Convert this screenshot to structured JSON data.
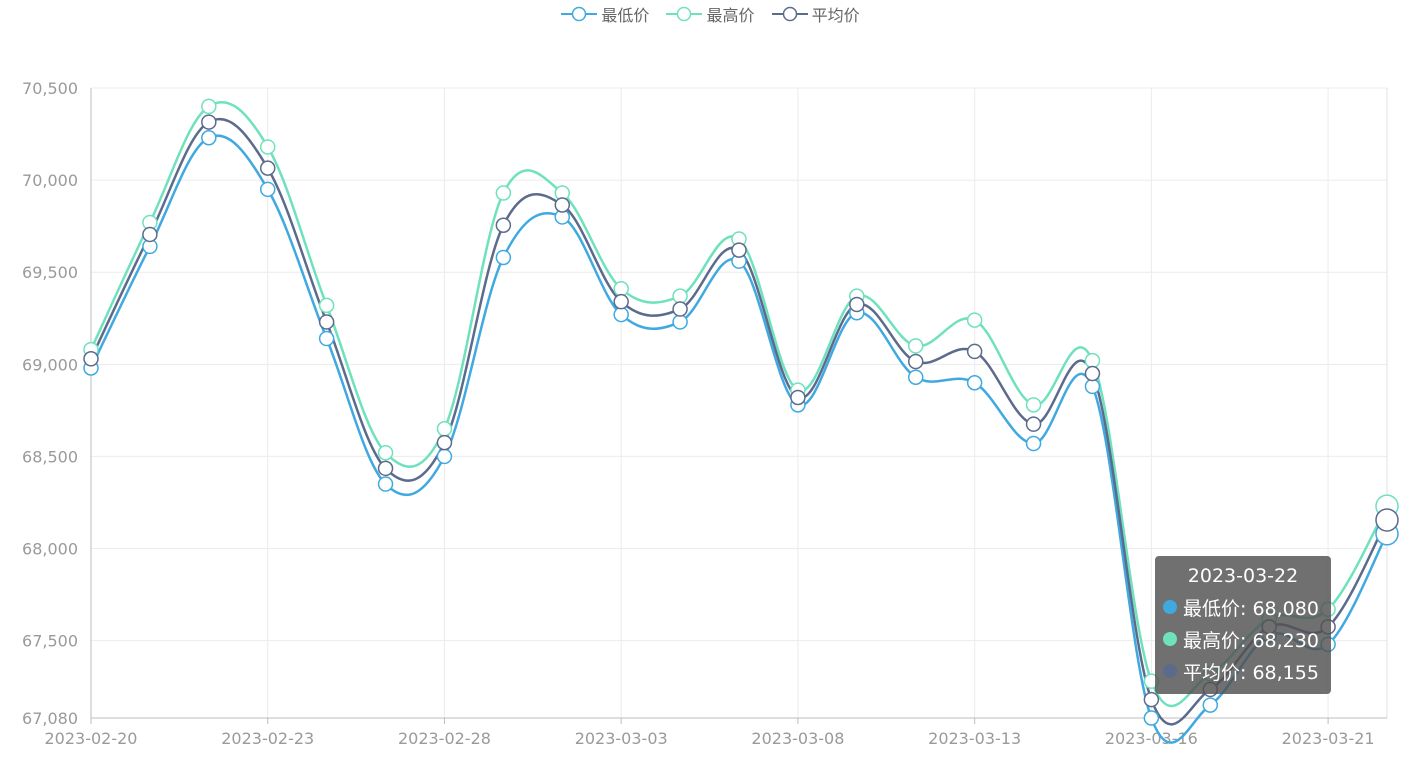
{
  "legend": [
    {
      "name": "最低价",
      "color": "#3fa9e0"
    },
    {
      "name": "最高价",
      "color": "#6fe1bd"
    },
    {
      "name": "平均价",
      "color": "#5c6a8c"
    }
  ],
  "tooltip": {
    "title": "2023-03-22",
    "rows": [
      {
        "label": "最低价: 68,080",
        "color": "#3fa9e0"
      },
      {
        "label": "最高价: 68,230",
        "color": "#6fe1bd"
      },
      {
        "label": "平均价: 68,155",
        "color": "#5c6a8c"
      }
    ]
  },
  "chart_data": {
    "type": "line",
    "x": [
      "2023-02-20",
      "2023-02-21",
      "2023-02-22",
      "2023-02-23",
      "2023-02-24",
      "2023-02-27",
      "2023-02-28",
      "2023-03-01",
      "2023-03-02",
      "2023-03-03",
      "2023-03-06",
      "2023-03-07",
      "2023-03-08",
      "2023-03-09",
      "2023-03-10",
      "2023-03-13",
      "2023-03-14",
      "2023-03-15",
      "2023-03-16",
      "2023-03-17",
      "2023-03-20",
      "2023-03-21",
      "2023-03-22"
    ],
    "x_tick_labels": [
      "2023-02-20",
      "2023-02-23",
      "2023-02-28",
      "2023-03-03",
      "2023-03-08",
      "2023-03-13",
      "2023-03-16",
      "2023-03-21"
    ],
    "y_tick_labels": [
      "67,080",
      "67,500",
      "68,000",
      "68,500",
      "69,000",
      "69,500",
      "70,000",
      "70,500"
    ],
    "ylim": [
      67080,
      70500
    ],
    "series": [
      {
        "name": "最低价",
        "color": "#3fa9e0",
        "values": [
          68980,
          69640,
          70230,
          69950,
          69140,
          68350,
          68500,
          69580,
          69800,
          69270,
          69230,
          69560,
          68780,
          69280,
          68930,
          68900,
          68570,
          68880,
          67080,
          67150,
          67530,
          67480,
          68080
        ]
      },
      {
        "name": "最高价",
        "color": "#6fe1bd",
        "values": [
          69080,
          69770,
          70400,
          70180,
          69320,
          68520,
          68650,
          69930,
          69930,
          69410,
          69370,
          69680,
          68860,
          69370,
          69100,
          69240,
          68780,
          69020,
          67280,
          67320,
          67620,
          67670,
          68230
        ]
      },
      {
        "name": "平均价",
        "color": "#5c6a8c",
        "values": [
          69030,
          69705,
          70315,
          70065,
          69230,
          68435,
          68575,
          69755,
          69865,
          69340,
          69300,
          69620,
          68820,
          69325,
          69015,
          69070,
          68675,
          68950,
          67180,
          67235,
          67575,
          67575,
          68155
        ]
      }
    ],
    "highlight_index": 22
  }
}
